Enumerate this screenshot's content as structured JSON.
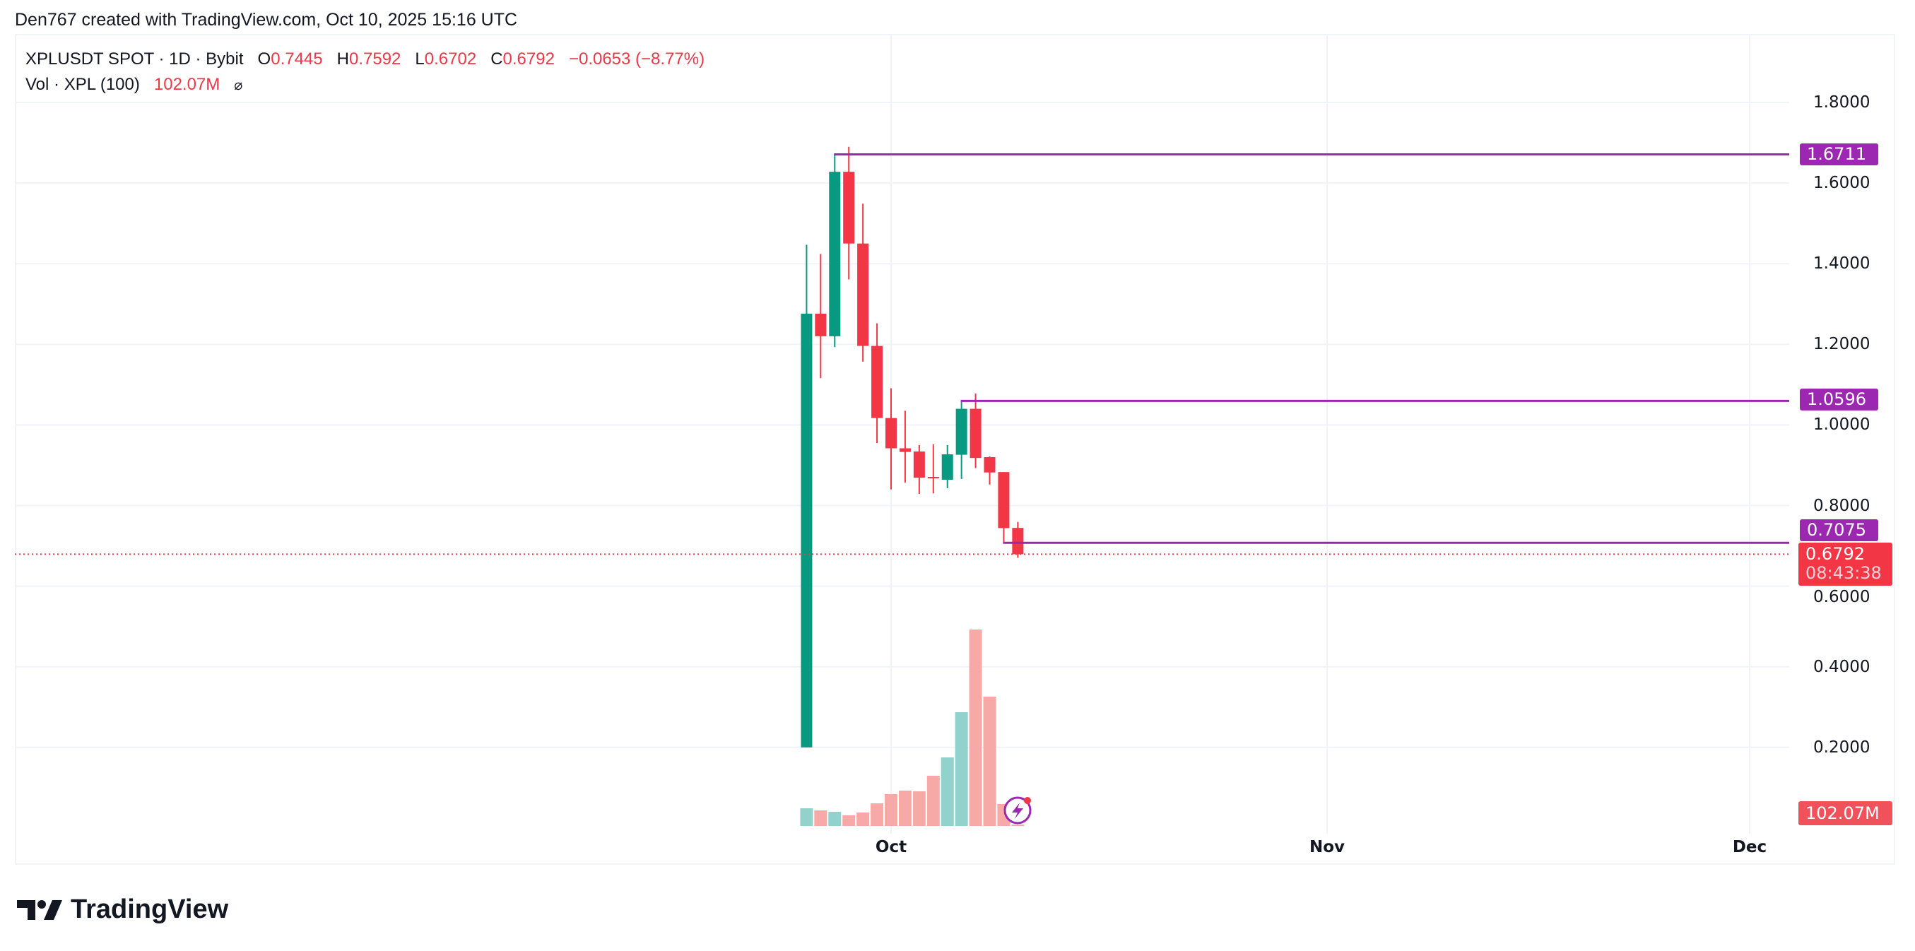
{
  "attribution": "Den767 created with TradingView.com, Oct 10, 2025 15:16 UTC",
  "legend": {
    "symbol": "XPLUSDT SPOT · 1D · Bybit",
    "o_label": "O",
    "o": "0.7445",
    "h_label": "H",
    "h": "0.7592",
    "l_label": "L",
    "l": "0.6702",
    "c_label": "C",
    "c": "0.6792",
    "change": "−0.0653 (−8.77%)",
    "vol_label": "Vol · XPL (100)",
    "vol_value": "102.07M",
    "vol_icon": "hidden-eye-slash-icon"
  },
  "price_axis": {
    "ticks": [
      "1.8000",
      "1.6000",
      "1.4000",
      "1.2000",
      "1.0000",
      "0.8000",
      "0.6000",
      "0.4000",
      "0.2000"
    ],
    "labels": [
      {
        "text": "1.6711",
        "color": "#9c27b0"
      },
      {
        "text": "1.0596",
        "color": "#9c27b0"
      },
      {
        "text": "0.7075",
        "color": "#9c27b0"
      }
    ],
    "last_price": "0.6792",
    "countdown": "08:43:38",
    "volume_label": "102.07M"
  },
  "time_axis": {
    "ticks": [
      "Oct",
      "Nov",
      "Dec"
    ]
  },
  "brand": "TradingView",
  "colors": {
    "up": "#089981",
    "down": "#f23645",
    "up_vol": "#92d2cc",
    "down_vol": "#f7a9a7",
    "level": "#9c27b0",
    "grid": "#f0f3fa"
  },
  "chart_data": {
    "type": "candlestick",
    "interval": "1D",
    "x": [
      "Sep 25",
      "Sep 26",
      "Sep 27",
      "Sep 28",
      "Sep 29",
      "Sep 30",
      "Oct 1",
      "Oct 2",
      "Oct 3",
      "Oct 4",
      "Oct 5",
      "Oct 6",
      "Oct 7",
      "Oct 8",
      "Oct 9",
      "Oct 10"
    ],
    "open": [
      0.2,
      1.276,
      1.22,
      1.628,
      1.45,
      1.196,
      1.017,
      0.942,
      0.934,
      0.871,
      0.864,
      0.926,
      1.04,
      0.92,
      0.883,
      0.7445
    ],
    "high": [
      1.447,
      1.424,
      1.6711,
      1.69,
      1.549,
      1.252,
      1.091,
      1.035,
      0.95,
      0.952,
      0.95,
      1.0596,
      1.078,
      0.922,
      0.883,
      0.7592
    ],
    "low": [
      0.2,
      1.116,
      1.193,
      1.361,
      1.157,
      0.955,
      0.84,
      0.857,
      0.829,
      0.83,
      0.843,
      0.866,
      0.893,
      0.852,
      0.7075,
      0.6702
    ],
    "close": [
      1.276,
      1.22,
      1.628,
      1.45,
      1.196,
      1.017,
      0.942,
      0.933,
      0.869,
      0.869,
      0.927,
      1.04,
      0.918,
      0.882,
      0.744,
      0.6792
    ],
    "volume_millions": [
      1275,
      1122,
      1020,
      765,
      969,
      1632,
      2295,
      2550,
      2499,
      3621,
      4947,
      8211,
      14178,
      9333,
      1581,
      102.07
    ],
    "levels": [
      1.6711,
      1.0596,
      0.7075
    ],
    "ylim": [
      0.0,
      1.9
    ],
    "grid": true
  }
}
